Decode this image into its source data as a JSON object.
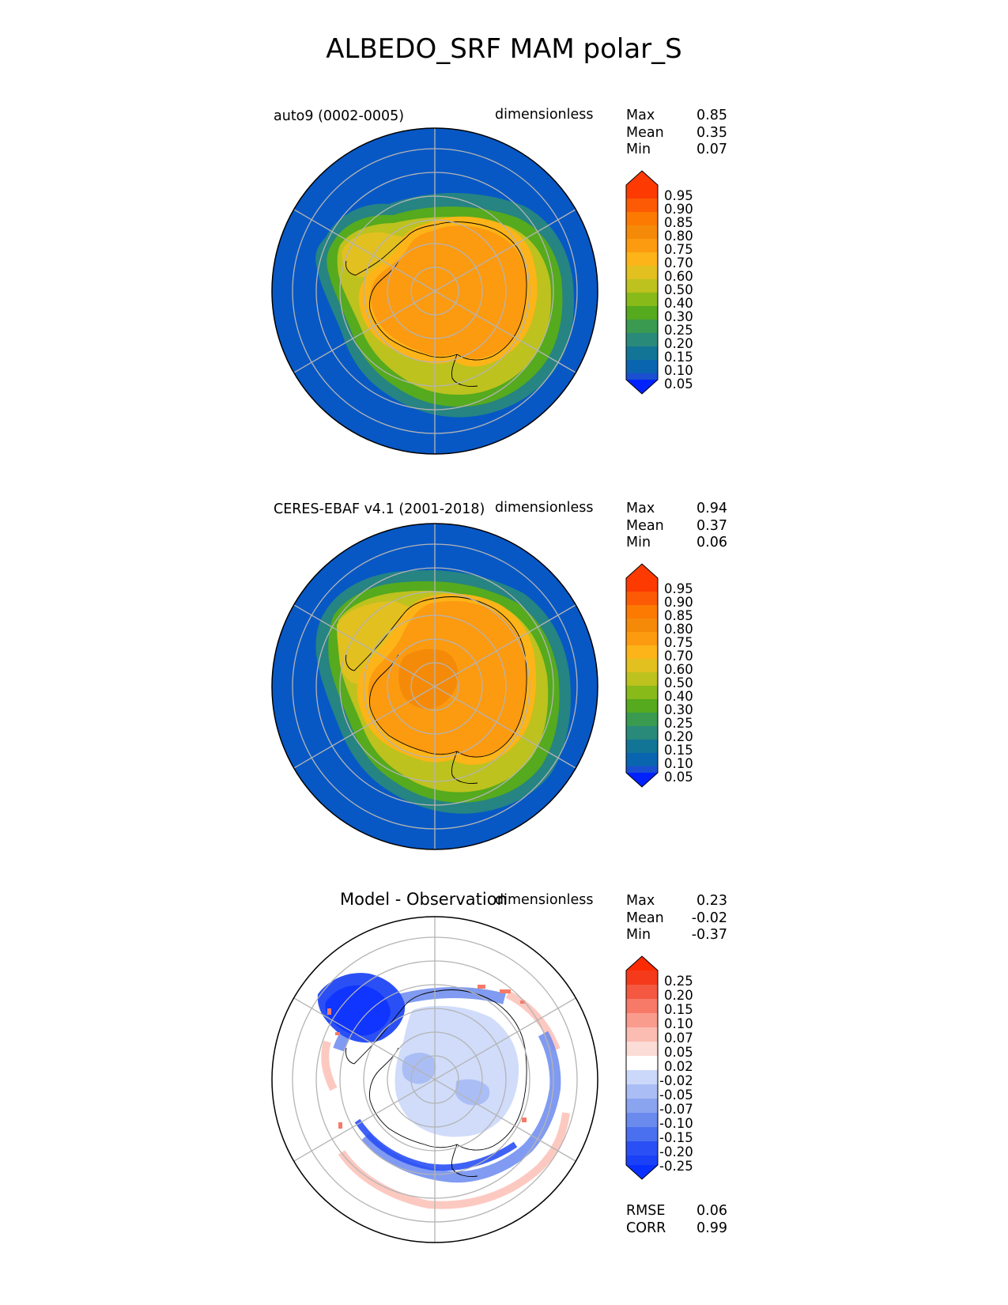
{
  "figure_title": "ALBEDO_SRF MAM polar_S",
  "panels": [
    {
      "id": "test",
      "left_label": "auto9 (0002-0005)",
      "title": "",
      "units": "dimensionless",
      "stats": {
        "max_label": "Max",
        "max": "0.85",
        "mean_label": "Mean",
        "mean": "0.35",
        "min_label": "Min",
        "min": "0.07"
      },
      "colorbar_labels": [
        "0.95",
        "0.90",
        "0.85",
        "0.80",
        "0.75",
        "0.70",
        "0.60",
        "0.50",
        "0.40",
        "0.30",
        "0.25",
        "0.20",
        "0.15",
        "0.10",
        "0.05"
      ]
    },
    {
      "id": "reference",
      "left_label": "CERES-EBAF v4.1 (2001-2018)",
      "title": "",
      "units": "dimensionless",
      "stats": {
        "max_label": "Max",
        "max": "0.94",
        "mean_label": "Mean",
        "mean": "0.37",
        "min_label": "Min",
        "min": "0.06"
      },
      "colorbar_labels": [
        "0.95",
        "0.90",
        "0.85",
        "0.80",
        "0.75",
        "0.70",
        "0.60",
        "0.50",
        "0.40",
        "0.30",
        "0.25",
        "0.20",
        "0.15",
        "0.10",
        "0.05"
      ]
    },
    {
      "id": "difference",
      "left_label": "",
      "title": "Model - Observation",
      "units": "dimensionless",
      "stats": {
        "max_label": "Max",
        "max": "0.23",
        "mean_label": "Mean",
        "mean": "-0.02",
        "min_label": "Min",
        "min": "-0.37"
      },
      "colorbar_labels": [
        "0.25",
        "0.20",
        "0.15",
        "0.10",
        "0.07",
        "0.05",
        "0.02",
        "-0.02",
        "-0.05",
        "-0.07",
        "-0.10",
        "-0.15",
        "-0.20",
        "-0.25"
      ],
      "metrics": {
        "rmse_label": "RMSE",
        "rmse": "0.06",
        "corr_label": "CORR",
        "corr": "0.99"
      }
    }
  ],
  "colors": {
    "albedo_scale": [
      "#0022ff",
      "#1a4fd0",
      "#0a65b0",
      "#127596",
      "#2a8a7a",
      "#3a9a50",
      "#55aa1e",
      "#88ba1a",
      "#bdc21e",
      "#e2c020",
      "#fcb418",
      "#fc9a10",
      "#f58a08",
      "#fc7a02",
      "#fc5a04",
      "#fc3a02"
    ],
    "diff_scale": [
      "#0a30ff",
      "#2a50f5",
      "#4a70f0",
      "#6a8aee",
      "#8aa4f0",
      "#aabef5",
      "#cbd8fa",
      "#ffffff",
      "#fcdcd6",
      "#fbbcb2",
      "#f99c8e",
      "#f77a68",
      "#f55840",
      "#f43a1a",
      "#fc2a02"
    ],
    "ocean": "#0758c5",
    "ice_core": "#fa8c0c",
    "grid": "#b4b4b4"
  }
}
